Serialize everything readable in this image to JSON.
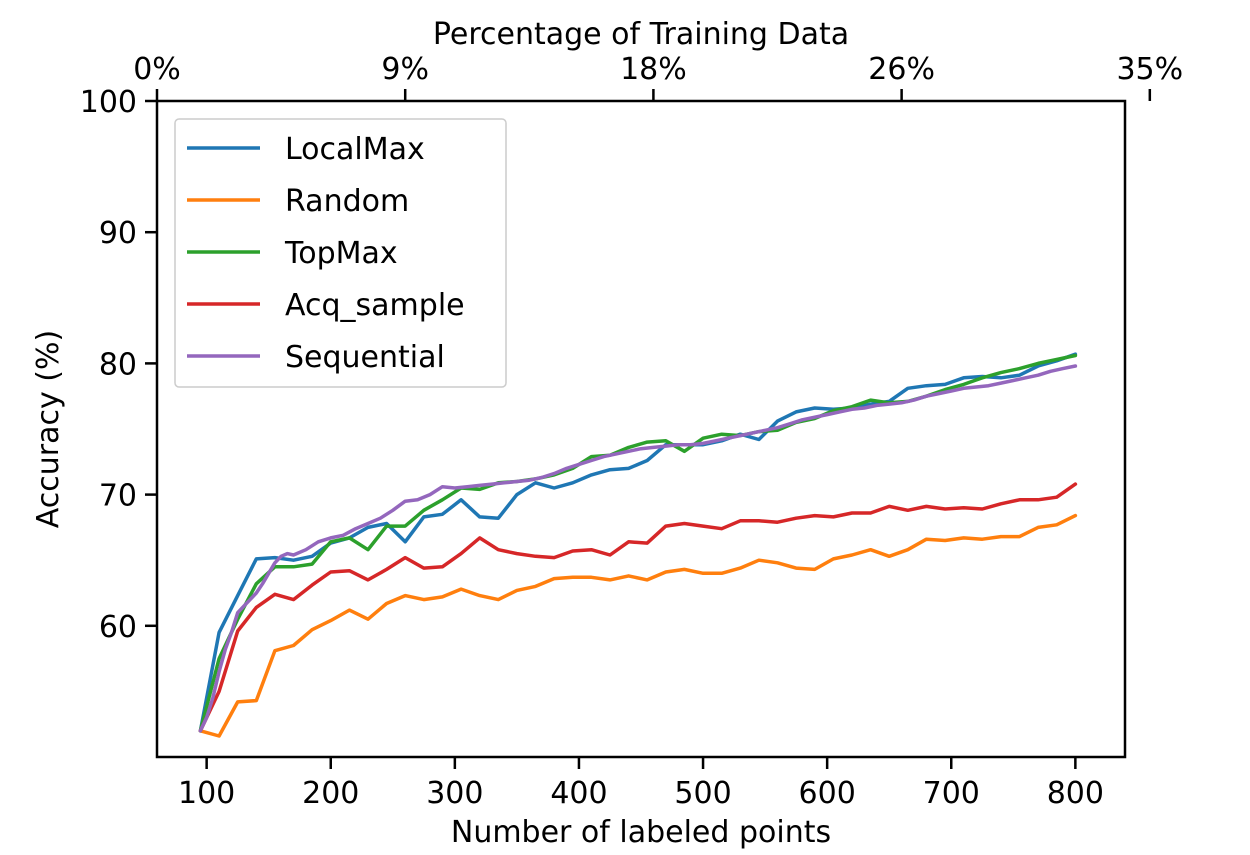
{
  "chart_data": {
    "type": "line",
    "xlabel": "Number of labeled points",
    "ylabel": "Accuracy (%)",
    "top_xlabel": "Percentage of Training Data",
    "xlim": [
      60,
      840
    ],
    "ylim": [
      50,
      100
    ],
    "xticks": [
      100,
      200,
      300,
      400,
      500,
      600,
      700,
      800
    ],
    "yticks": [
      60,
      70,
      80,
      90,
      100
    ],
    "top_ticks": [
      {
        "x": 60,
        "label": "0%"
      },
      {
        "x": 260,
        "label": "9%"
      },
      {
        "x": 460,
        "label": "18%"
      },
      {
        "x": 660,
        "label": "26%"
      },
      {
        "x": 860,
        "label": "35%"
      }
    ],
    "grid": false,
    "legend_position": "top-left",
    "series": [
      {
        "name": "LocalMax",
        "color": "#1f77b4",
        "x": [
          95,
          110,
          125,
          140,
          155,
          170,
          185,
          200,
          215,
          230,
          245,
          260,
          275,
          290,
          305,
          320,
          335,
          350,
          365,
          380,
          395,
          410,
          425,
          440,
          455,
          470,
          485,
          500,
          515,
          530,
          545,
          560,
          575,
          590,
          605,
          620,
          635,
          650,
          665,
          680,
          695,
          710,
          725,
          740,
          755,
          770,
          785,
          800
        ],
        "values": [
          52.0,
          59.5,
          62.3,
          65.1,
          65.2,
          65.0,
          65.3,
          66.3,
          66.7,
          67.5,
          67.8,
          66.4,
          68.3,
          68.5,
          69.6,
          68.3,
          68.2,
          70.0,
          70.9,
          70.5,
          70.9,
          71.5,
          71.9,
          72.0,
          72.6,
          73.8,
          73.8,
          73.8,
          74.1,
          74.6,
          74.2,
          75.6,
          76.3,
          76.6,
          76.5,
          76.6,
          76.9,
          77.1,
          78.1,
          78.3,
          78.4,
          78.9,
          79.0,
          78.9,
          79.1,
          79.8,
          80.2,
          80.7
        ]
      },
      {
        "name": "Random",
        "color": "#ff7f0e",
        "x": [
          95,
          110,
          125,
          140,
          155,
          170,
          185,
          200,
          215,
          230,
          245,
          260,
          275,
          290,
          305,
          320,
          335,
          350,
          365,
          380,
          395,
          410,
          425,
          440,
          455,
          470,
          485,
          500,
          515,
          530,
          545,
          560,
          575,
          590,
          605,
          620,
          635,
          650,
          665,
          680,
          695,
          710,
          725,
          740,
          755,
          770,
          785,
          800
        ],
        "values": [
          52.0,
          51.6,
          54.2,
          54.3,
          58.1,
          58.5,
          59.7,
          60.4,
          61.2,
          60.5,
          61.7,
          62.3,
          62.0,
          62.2,
          62.8,
          62.3,
          62.0,
          62.7,
          63.0,
          63.6,
          63.7,
          63.7,
          63.5,
          63.8,
          63.5,
          64.1,
          64.3,
          64.0,
          64.0,
          64.4,
          65.0,
          64.8,
          64.4,
          64.3,
          65.1,
          65.4,
          65.8,
          65.3,
          65.8,
          66.6,
          66.5,
          66.7,
          66.6,
          66.8,
          66.8,
          67.5,
          67.7,
          68.4
        ]
      },
      {
        "name": "TopMax",
        "color": "#2ca02c",
        "x": [
          95,
          110,
          125,
          140,
          155,
          170,
          185,
          200,
          215,
          230,
          245,
          260,
          275,
          290,
          305,
          320,
          335,
          350,
          365,
          380,
          395,
          410,
          425,
          440,
          455,
          470,
          485,
          500,
          515,
          530,
          545,
          560,
          575,
          590,
          605,
          620,
          635,
          650,
          665,
          680,
          695,
          710,
          725,
          740,
          755,
          770,
          785,
          800
        ],
        "values": [
          52.0,
          57.5,
          60.5,
          63.2,
          64.5,
          64.5,
          64.7,
          66.4,
          66.7,
          65.8,
          67.6,
          67.6,
          68.8,
          69.6,
          70.5,
          70.4,
          70.9,
          71.0,
          71.2,
          71.5,
          72.0,
          72.9,
          73.0,
          73.6,
          74.0,
          74.1,
          73.3,
          74.3,
          74.6,
          74.5,
          74.8,
          74.9,
          75.5,
          75.8,
          76.4,
          76.7,
          77.2,
          77.0,
          77.1,
          77.5,
          78.0,
          78.4,
          78.9,
          79.3,
          79.6,
          80.0,
          80.3,
          80.6
        ]
      },
      {
        "name": "Acq_sample",
        "color": "#d62728",
        "x": [
          95,
          110,
          125,
          140,
          155,
          170,
          185,
          200,
          215,
          230,
          245,
          260,
          275,
          290,
          305,
          320,
          335,
          350,
          365,
          380,
          395,
          410,
          425,
          440,
          455,
          470,
          485,
          500,
          515,
          530,
          545,
          560,
          575,
          590,
          605,
          620,
          635,
          650,
          665,
          680,
          695,
          710,
          725,
          740,
          755,
          770,
          785,
          800
        ],
        "values": [
          52.0,
          55.0,
          59.6,
          61.4,
          62.4,
          62.0,
          63.1,
          64.1,
          64.2,
          63.5,
          64.3,
          65.2,
          64.4,
          64.5,
          65.5,
          66.7,
          65.8,
          65.5,
          65.3,
          65.2,
          65.7,
          65.8,
          65.4,
          66.4,
          66.3,
          67.6,
          67.8,
          67.6,
          67.4,
          68.0,
          68.0,
          67.9,
          68.2,
          68.4,
          68.3,
          68.6,
          68.6,
          69.1,
          68.8,
          69.1,
          68.9,
          69.0,
          68.9,
          69.3,
          69.6,
          69.6,
          69.8,
          70.8
        ]
      },
      {
        "name": "Sequential",
        "color": "#9467bd",
        "x": [
          95,
          100,
          105,
          110,
          115,
          120,
          125,
          130,
          135,
          140,
          145,
          150,
          155,
          160,
          165,
          170,
          180,
          190,
          200,
          210,
          220,
          230,
          240,
          250,
          260,
          270,
          280,
          290,
          300,
          310,
          320,
          330,
          340,
          350,
          360,
          370,
          380,
          390,
          400,
          410,
          420,
          430,
          440,
          450,
          460,
          470,
          480,
          490,
          500,
          510,
          520,
          530,
          540,
          550,
          560,
          570,
          580,
          590,
          600,
          610,
          620,
          630,
          640,
          650,
          660,
          670,
          680,
          690,
          700,
          710,
          720,
          730,
          740,
          750,
          760,
          770,
          780,
          790,
          800
        ],
        "values": [
          52.0,
          53.0,
          54.5,
          56.5,
          58.2,
          59.5,
          61.0,
          61.5,
          62.0,
          62.5,
          63.2,
          64.0,
          64.8,
          65.3,
          65.5,
          65.4,
          65.8,
          66.4,
          66.7,
          66.9,
          67.4,
          67.8,
          68.2,
          68.8,
          69.5,
          69.6,
          70.0,
          70.6,
          70.5,
          70.6,
          70.7,
          70.8,
          70.9,
          71.0,
          71.1,
          71.3,
          71.6,
          72.0,
          72.3,
          72.6,
          72.9,
          73.1,
          73.3,
          73.5,
          73.6,
          73.7,
          73.8,
          73.8,
          73.9,
          74.1,
          74.3,
          74.5,
          74.7,
          74.9,
          75.1,
          75.4,
          75.7,
          75.9,
          76.1,
          76.3,
          76.5,
          76.6,
          76.8,
          76.9,
          77.0,
          77.2,
          77.5,
          77.7,
          77.9,
          78.1,
          78.2,
          78.3,
          78.5,
          78.7,
          78.9,
          79.1,
          79.4,
          79.6,
          79.8
        ]
      }
    ]
  }
}
